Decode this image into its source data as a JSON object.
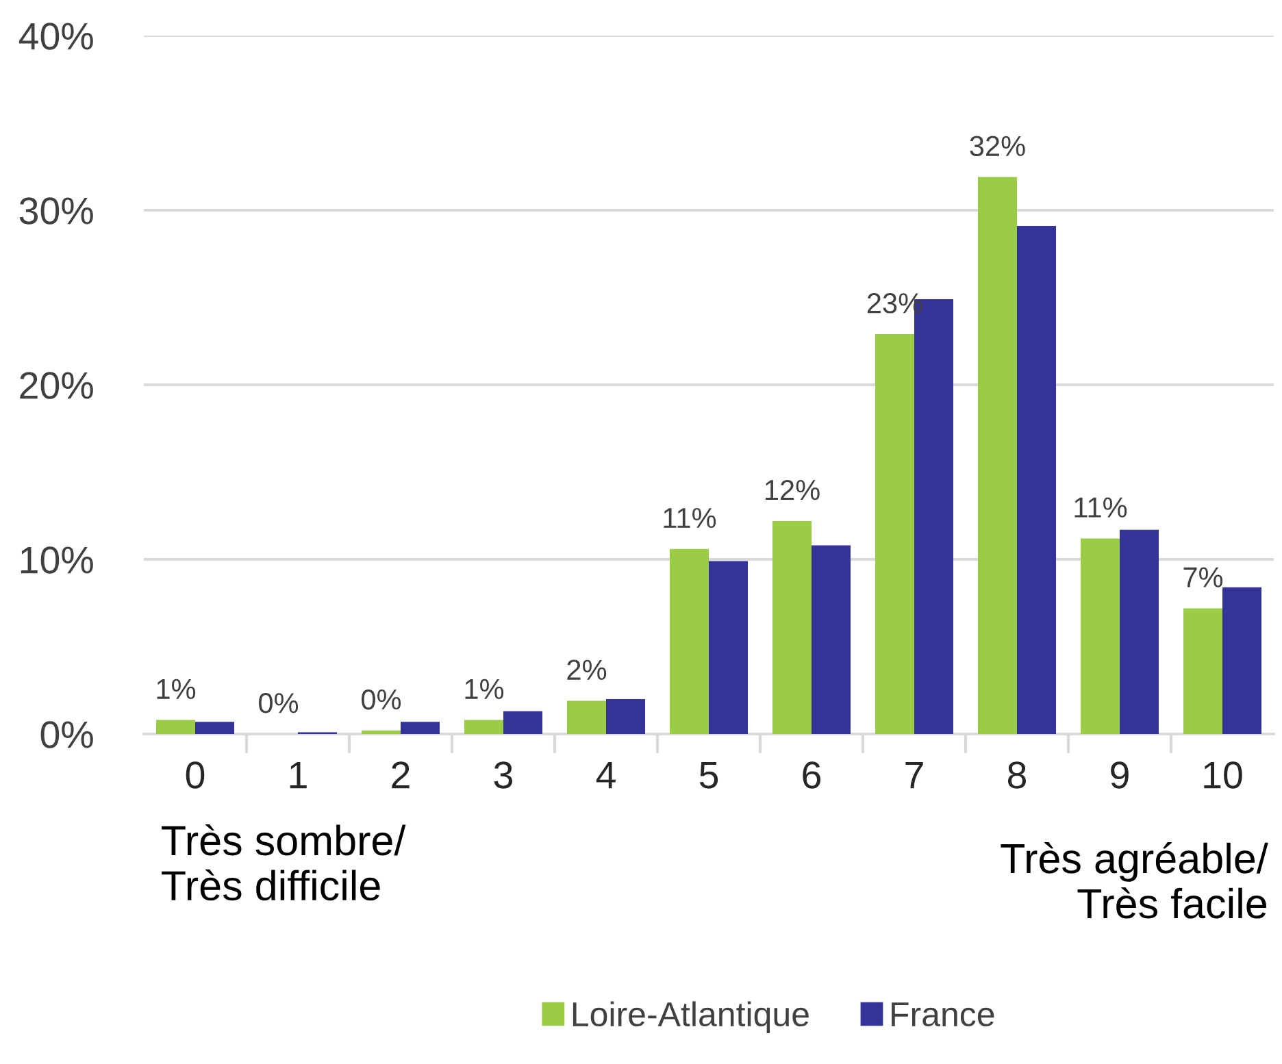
{
  "chart_data": {
    "type": "bar",
    "categories": [
      "0",
      "1",
      "2",
      "3",
      "4",
      "5",
      "6",
      "7",
      "8",
      "9",
      "10"
    ],
    "series": [
      {
        "name": "Loire-Atlantique",
        "color": "#9acd45",
        "values": [
          0.8,
          0,
          0.2,
          0.8,
          1.9,
          10.6,
          12.2,
          22.9,
          31.9,
          11.2,
          7.2
        ],
        "value_labels": [
          "1%",
          "0%",
          "0%",
          "1%",
          "2%",
          "11%",
          "12%",
          "23%",
          "32%",
          "11%",
          "7%"
        ]
      },
      {
        "name": "France",
        "color": "#333399",
        "values": [
          0.7,
          0.1,
          0.7,
          1.3,
          2.0,
          9.9,
          10.8,
          24.9,
          29.1,
          11.7,
          8.4
        ]
      }
    ],
    "ylim": [
      0,
      40
    ],
    "yticks": [
      {
        "value": 0,
        "label": "0%"
      },
      {
        "value": 10,
        "label": "10%"
      },
      {
        "value": 20,
        "label": "20%"
      },
      {
        "value": 30,
        "label": "30%"
      },
      {
        "value": 40,
        "label": "40%"
      }
    ],
    "grid": "y",
    "legend": "bottom",
    "annotations": [
      "Très sombre/\nTrès difficile",
      "Très agréable/\nTrès facile"
    ]
  }
}
